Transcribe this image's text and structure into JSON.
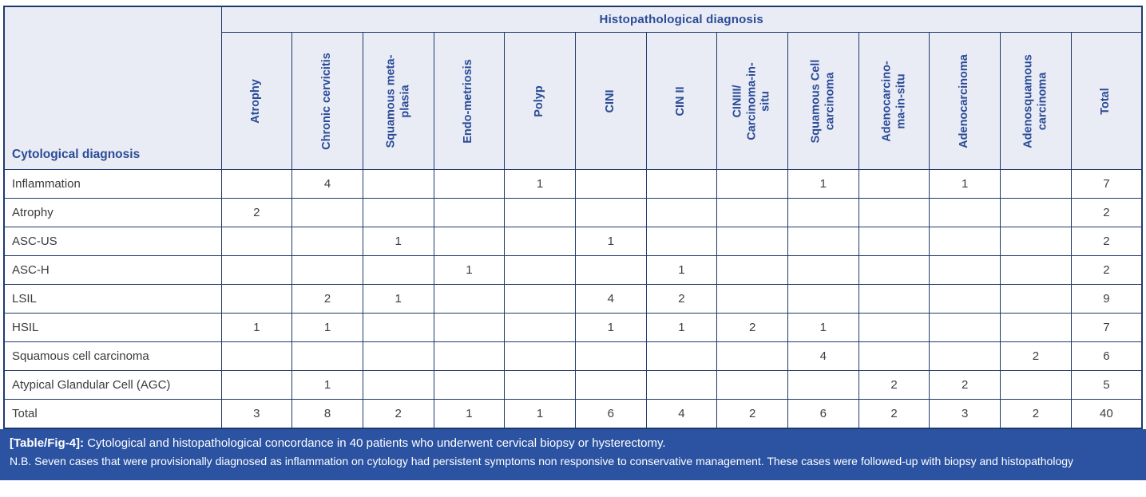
{
  "colors": {
    "header_bg": "#e9ecf5",
    "grid_border": "#1e3a6c",
    "header_text": "#2b4b97",
    "body_text": "#3e3e3e",
    "caption_bg": "#2b53a2",
    "caption_text": "#ffffff"
  },
  "table": {
    "top_header": "Histopathological diagnosis",
    "row_header": "Cytological diagnosis",
    "columns": [
      "Atrophy",
      "Chronic cervicitis",
      "Squamous meta-\nplasia",
      "Endo-metriosis",
      "Polyp",
      "CINI",
      "CIN II",
      "CINIII/\nCarcinoma-in-\nsitu",
      "Squamous Cell\ncarcinoma",
      "Adenocarcino-\nma-in-situ",
      "Adenocarcinoma",
      "Adenosquamous\ncarcinoma",
      "Total"
    ],
    "rows": [
      {
        "label": "Inflammation",
        "values": [
          "",
          "4",
          "",
          "",
          "1",
          "",
          "",
          "",
          "1",
          "",
          "1",
          "",
          "7"
        ]
      },
      {
        "label": "Atrophy",
        "values": [
          "2",
          "",
          "",
          "",
          "",
          "",
          "",
          "",
          "",
          "",
          "",
          "",
          "2"
        ]
      },
      {
        "label": "ASC-US",
        "values": [
          "",
          "",
          "1",
          "",
          "",
          "1",
          "",
          "",
          "",
          "",
          "",
          "",
          "2"
        ]
      },
      {
        "label": "ASC-H",
        "values": [
          "",
          "",
          "",
          "1",
          "",
          "",
          "1",
          "",
          "",
          "",
          "",
          "",
          "2"
        ]
      },
      {
        "label": "LSIL",
        "values": [
          "",
          "2",
          "1",
          "",
          "",
          "4",
          "2",
          "",
          "",
          "",
          "",
          "",
          "9"
        ]
      },
      {
        "label": "HSIL",
        "values": [
          "1",
          "1",
          "",
          "",
          "",
          "1",
          "1",
          "2",
          "1",
          "",
          "",
          "",
          "7"
        ]
      },
      {
        "label": "Squamous cell carcinoma",
        "values": [
          "",
          "",
          "",
          "",
          "",
          "",
          "",
          "",
          "4",
          "",
          "",
          "2",
          "6"
        ]
      },
      {
        "label": "Atypical Glandular Cell (AGC)",
        "values": [
          "",
          "1",
          "",
          "",
          "",
          "",
          "",
          "",
          "",
          "2",
          "2",
          "",
          "5"
        ]
      },
      {
        "label": "Total",
        "values": [
          "3",
          "8",
          "2",
          "1",
          "1",
          "6",
          "4",
          "2",
          "6",
          "2",
          "3",
          "2",
          "40"
        ]
      }
    ]
  },
  "caption": {
    "tag": "[Table/Fig-4]:",
    "title": "Cytological and histopathological concordance in 40 patients who underwent cervical biopsy or hysterectomy.",
    "note": "N.B. Seven cases that were provisionally diagnosed as inflammation on cytology had persistent symptoms non responsive to conservative management. These cases were followed-up with biopsy and histopathology"
  }
}
